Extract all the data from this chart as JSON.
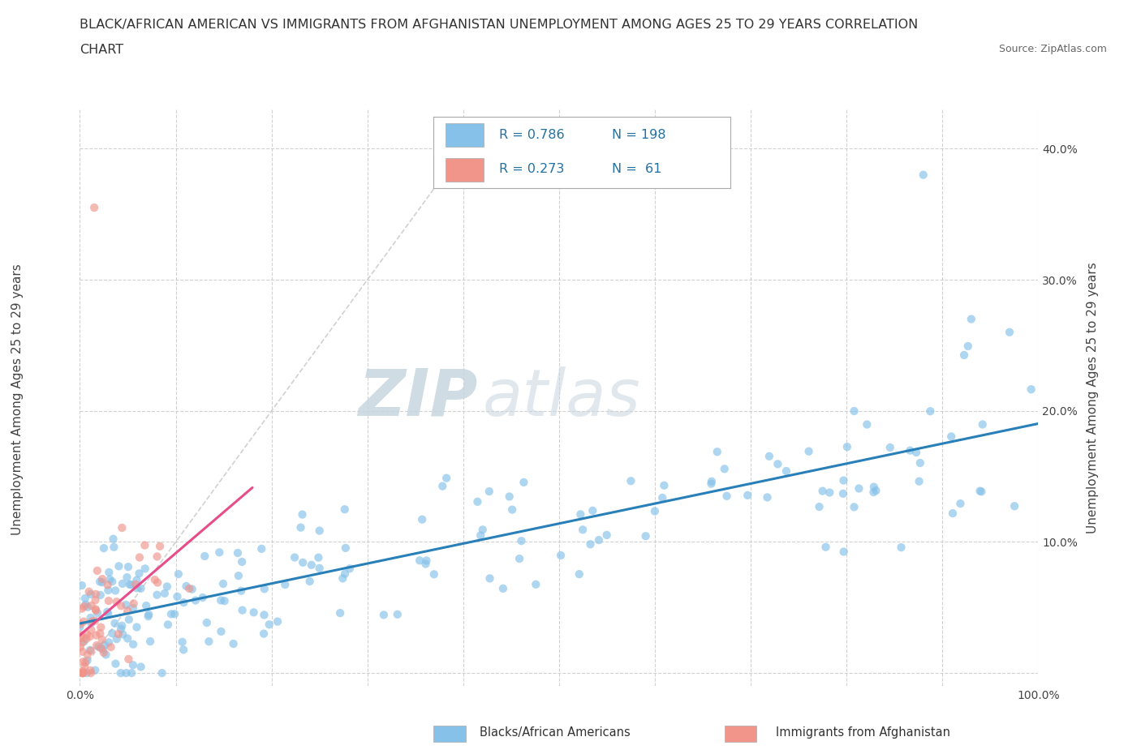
{
  "title_line1": "BLACK/AFRICAN AMERICAN VS IMMIGRANTS FROM AFGHANISTAN UNEMPLOYMENT AMONG AGES 25 TO 29 YEARS CORRELATION",
  "title_line2": "CHART",
  "source": "Source: ZipAtlas.com",
  "ylabel": "Unemployment Among Ages 25 to 29 years",
  "legend_label1": "Blacks/African Americans",
  "legend_label2": "Immigrants from Afghanistan",
  "R1": 0.786,
  "N1": 198,
  "R2": 0.273,
  "N2": 61,
  "color1": "#85c1e9",
  "color2": "#f1948a",
  "trendline1_color": "#2980b9",
  "trendline2_color": "#e74c8b",
  "ref_line_color": "#cccccc",
  "background_color": "#ffffff",
  "xlim": [
    0.0,
    1.0
  ],
  "ylim": [
    -0.01,
    0.43
  ],
  "x_ticks": [
    0.0,
    0.1,
    0.2,
    0.3,
    0.4,
    0.5,
    0.6,
    0.7,
    0.8,
    0.9,
    1.0
  ],
  "y_ticks": [
    0.0,
    0.1,
    0.2,
    0.3,
    0.4
  ],
  "watermark_zip": "ZIP",
  "watermark_atlas": "atlas",
  "grid_color": "#cccccc",
  "scatter_alpha": 0.65,
  "scatter_size": 55,
  "blue_text_color": "#2471a3",
  "legend_text_color": "#2471a3"
}
